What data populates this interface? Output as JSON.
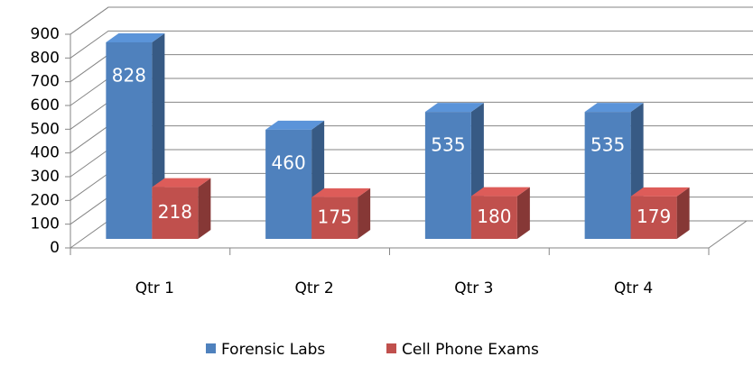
{
  "chart_data": {
    "type": "bar",
    "categories": [
      "Qtr 1",
      "Qtr 2",
      "Qtr 3",
      "Qtr 4"
    ],
    "series": [
      {
        "name": "Forensic Labs",
        "color": "#4f81bd",
        "values": [
          828,
          460,
          535,
          535
        ]
      },
      {
        "name": "Cell Phone Exams",
        "color": "#c0504d",
        "values": [
          218,
          175,
          180,
          179
        ]
      }
    ],
    "ylim": [
      0,
      900
    ],
    "yticks": [
      0,
      100,
      200,
      300,
      400,
      500,
      600,
      700,
      800,
      900
    ],
    "grid": true,
    "legend": "bottom"
  }
}
